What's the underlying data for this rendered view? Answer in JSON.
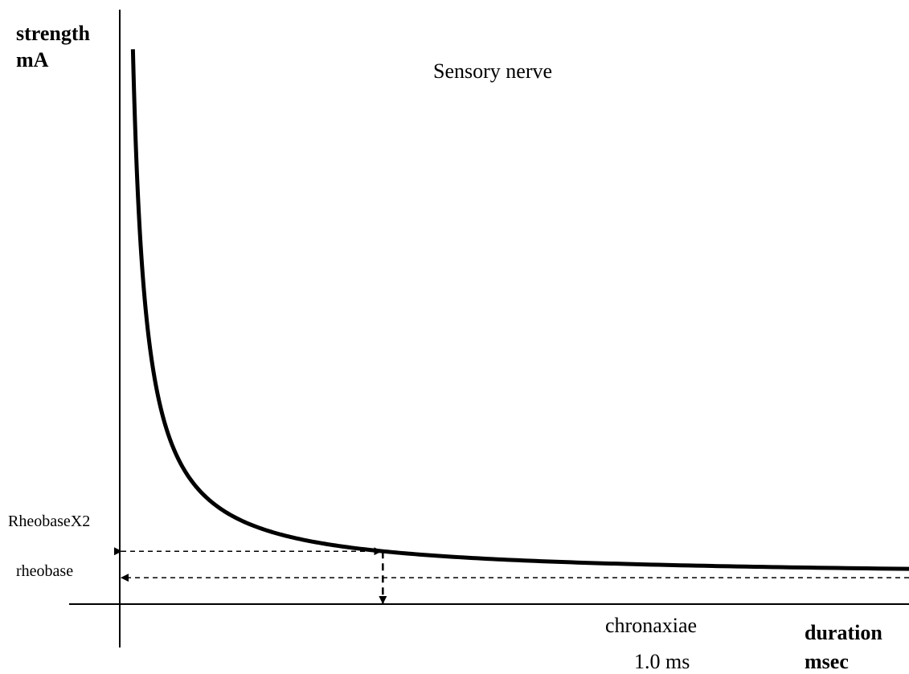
{
  "chart_data": {
    "type": "line",
    "title": "",
    "ylabel": [
      "strength",
      "mA"
    ],
    "xlabel": [
      "duration",
      "msec"
    ],
    "series": [
      {
        "name": "Sensory nerve",
        "curve": "strength-duration",
        "x": [
          0.05,
          0.1,
          0.2,
          0.3,
          0.5,
          0.75,
          1.0,
          1.5,
          2.0,
          3.0
        ],
        "y": [
          21.0,
          11.0,
          6.0,
          4.33,
          3.0,
          2.33,
          2.0,
          1.67,
          1.5,
          1.33
        ]
      }
    ],
    "rheobase": {
      "label": "rheobase",
      "y": 1.0
    },
    "rheobase_x2": {
      "label": "RheobaseX2",
      "y": 2.0
    },
    "chronaxie": {
      "label": "chronaxiae",
      "value_label": "1.0 ms",
      "x": 1.0
    },
    "xlim": [
      0,
      3.0
    ],
    "ylim": [
      0,
      22.5
    ],
    "grid": false,
    "legend": "none"
  }
}
